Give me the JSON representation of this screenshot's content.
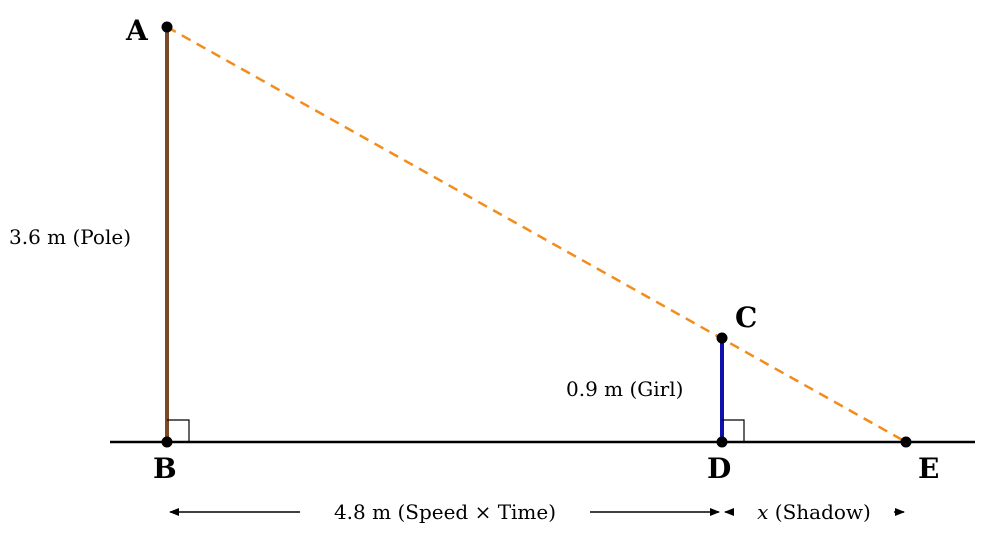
{
  "points": {
    "A": "A",
    "B": "B",
    "C": "C",
    "D": "D",
    "E": "E"
  },
  "labels": {
    "pole": "3.6 m (Pole)",
    "girl": "0.9 m (Girl)",
    "distance": "4.8 m (Speed × Time)",
    "shadow_var": "x",
    "shadow_text": " (Shadow)"
  },
  "colors": {
    "pole": "#7a4a26",
    "girl": "#1010b0",
    "light_ray": "#f28c1c",
    "ground": "#000000"
  }
}
